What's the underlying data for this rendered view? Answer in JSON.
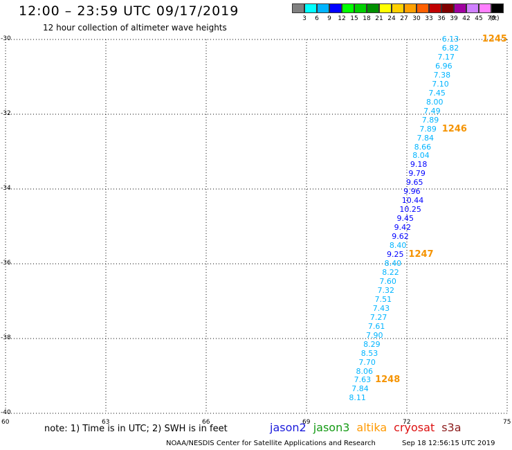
{
  "header": {
    "title": "12:00 – 23:59 UTC 09/17/2019",
    "subtitle": "12 hour collection of altimeter wave heights"
  },
  "color_scale": {
    "labels": [
      "3",
      "6",
      "9",
      "12",
      "15",
      "18",
      "21",
      "24",
      "27",
      "30",
      "33",
      "36",
      "39",
      "42",
      "45",
      "70"
    ],
    "unit": "(ft)",
    "colors": [
      "#808080",
      "#00ffff",
      "#00b4ff",
      "#0000ff",
      "#00ff00",
      "#00d000",
      "#009000",
      "#ffff00",
      "#ffd000",
      "#ffa000",
      "#ff6000",
      "#c00000",
      "#800000",
      "#a000a0",
      "#d080ff",
      "#ff80ff",
      "#000000"
    ]
  },
  "axes": {
    "y_labels": [
      "-30",
      "-32",
      "-34",
      "-36",
      "-38",
      "-40"
    ],
    "x_labels": [
      "60",
      "63",
      "66",
      "69",
      "72",
      "75"
    ]
  },
  "map_data": {
    "lat_range": [
      -40,
      -30
    ],
    "lon_range": [
      60,
      75
    ],
    "wave_heights": [
      {
        "value": "6.13",
        "lon": 73.05,
        "lat": -30.0,
        "color": "#00b4ff"
      },
      {
        "value": "6.82",
        "lon": 73.05,
        "lat": -30.24,
        "color": "#00b4ff"
      },
      {
        "value": "7.17",
        "lon": 72.92,
        "lat": -30.48,
        "color": "#00b4ff"
      },
      {
        "value": "6.96",
        "lon": 72.85,
        "lat": -30.72,
        "color": "#00b4ff"
      },
      {
        "value": "7.38",
        "lon": 72.8,
        "lat": -30.96,
        "color": "#00b4ff"
      },
      {
        "value": "7.10",
        "lon": 72.75,
        "lat": -31.2,
        "color": "#00b4ff"
      },
      {
        "value": "7.45",
        "lon": 72.65,
        "lat": -31.44,
        "color": "#00b4ff"
      },
      {
        "value": "8.00",
        "lon": 72.58,
        "lat": -31.68,
        "color": "#00b4ff"
      },
      {
        "value": "7.49",
        "lon": 72.5,
        "lat": -31.92,
        "color": "#00b4ff"
      },
      {
        "value": "7.89",
        "lon": 72.45,
        "lat": -32.16,
        "color": "#00b4ff"
      },
      {
        "value": "7.89",
        "lon": 72.38,
        "lat": -32.4,
        "color": "#00b4ff"
      },
      {
        "value": "7.84",
        "lon": 72.3,
        "lat": -32.64,
        "color": "#00b4ff"
      },
      {
        "value": "8.66",
        "lon": 72.22,
        "lat": -32.88,
        "color": "#00b4ff"
      },
      {
        "value": "8.04",
        "lon": 72.17,
        "lat": -33.12,
        "color": "#00b4ff"
      },
      {
        "value": "9.18",
        "lon": 72.1,
        "lat": -33.36,
        "color": "#0000ff"
      },
      {
        "value": "9.79",
        "lon": 72.05,
        "lat": -33.6,
        "color": "#0000ff"
      },
      {
        "value": "9.65",
        "lon": 71.98,
        "lat": -33.84,
        "color": "#0000ff"
      },
      {
        "value": "9.96",
        "lon": 71.9,
        "lat": -34.08,
        "color": "#0000ff"
      },
      {
        "value": "10.44",
        "lon": 71.85,
        "lat": -34.32,
        "color": "#0000ff"
      },
      {
        "value": "10.25",
        "lon": 71.78,
        "lat": -34.56,
        "color": "#0000ff"
      },
      {
        "value": "9.45",
        "lon": 71.7,
        "lat": -34.8,
        "color": "#0000ff"
      },
      {
        "value": "9.42",
        "lon": 71.62,
        "lat": -35.04,
        "color": "#0000ff"
      },
      {
        "value": "9.62",
        "lon": 71.55,
        "lat": -35.28,
        "color": "#0000ff"
      },
      {
        "value": "8.40",
        "lon": 71.48,
        "lat": -35.52,
        "color": "#00b4ff"
      },
      {
        "value": "9.25",
        "lon": 71.4,
        "lat": -35.76,
        "color": "#0000ff"
      },
      {
        "value": "8.40",
        "lon": 71.33,
        "lat": -36.0,
        "color": "#00b4ff"
      },
      {
        "value": "8.22",
        "lon": 71.26,
        "lat": -36.24,
        "color": "#00b4ff"
      },
      {
        "value": "7.60",
        "lon": 71.18,
        "lat": -36.48,
        "color": "#00b4ff"
      },
      {
        "value": "7.32",
        "lon": 71.12,
        "lat": -36.72,
        "color": "#00b4ff"
      },
      {
        "value": "7.51",
        "lon": 71.04,
        "lat": -36.96,
        "color": "#00b4ff"
      },
      {
        "value": "7.43",
        "lon": 70.98,
        "lat": -37.2,
        "color": "#00b4ff"
      },
      {
        "value": "7.27",
        "lon": 70.9,
        "lat": -37.44,
        "color": "#00b4ff"
      },
      {
        "value": "7.61",
        "lon": 70.84,
        "lat": -37.68,
        "color": "#00b4ff"
      },
      {
        "value": "7.90",
        "lon": 70.78,
        "lat": -37.92,
        "color": "#00b4ff"
      },
      {
        "value": "8.29",
        "lon": 70.7,
        "lat": -38.16,
        "color": "#00b4ff"
      },
      {
        "value": "8.53",
        "lon": 70.63,
        "lat": -38.4,
        "color": "#00b4ff"
      },
      {
        "value": "7.70",
        "lon": 70.56,
        "lat": -38.64,
        "color": "#00b4ff"
      },
      {
        "value": "8.06",
        "lon": 70.48,
        "lat": -38.88,
        "color": "#00b4ff"
      },
      {
        "value": "7.63",
        "lon": 70.42,
        "lat": -39.12,
        "color": "#00b4ff"
      },
      {
        "value": "7.84",
        "lon": 70.35,
        "lat": -39.36,
        "color": "#00b4ff"
      },
      {
        "value": "8.11",
        "lon": 70.27,
        "lat": -39.6,
        "color": "#00b4ff"
      }
    ],
    "pass_times": [
      {
        "label": "1245",
        "lon": 74.25,
        "lat": -30.0
      },
      {
        "label": "1246",
        "lon": 73.05,
        "lat": -32.4
      },
      {
        "label": "1247",
        "lon": 72.05,
        "lat": -35.76
      },
      {
        "label": "1248",
        "lon": 71.05,
        "lat": -39.12
      }
    ]
  },
  "footer": {
    "note": "note: 1) Time is in UTC; 2) SWH is in feet",
    "satellites": [
      {
        "name": "jason2",
        "color": "#1a1adb"
      },
      {
        "name": "jason3",
        "color": "#149a14"
      },
      {
        "name": "altika",
        "color": "#ff9900"
      },
      {
        "name": "cryosat",
        "color": "#dd1010"
      },
      {
        "name": "s3a",
        "color": "#8b1a1a"
      }
    ],
    "credit": "NOAA/NESDIS Center for Satellite Applications and Research",
    "timestamp": "Sep 18 12:56:15 UTC 2019"
  }
}
